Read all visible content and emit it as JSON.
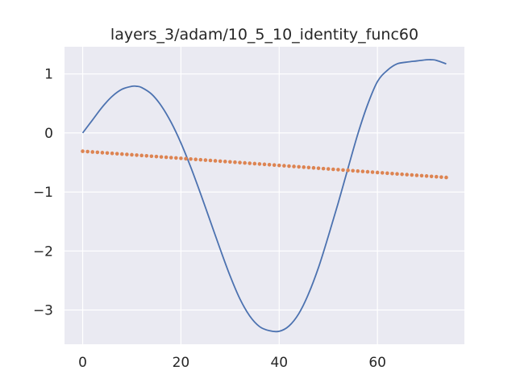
{
  "chart_data": {
    "type": "line",
    "title": "layers_3/adam/10_5_10_identity_func60",
    "xlabel": "",
    "ylabel": "",
    "xlim": [
      -3.7,
      77.7
    ],
    "ylim": [
      -3.58,
      1.46
    ],
    "grid": true,
    "xticks": [
      0,
      20,
      40,
      60
    ],
    "xtick_labels": [
      "0",
      "20",
      "40",
      "60"
    ],
    "yticks": [
      1,
      0,
      -1,
      -2,
      -3
    ],
    "ytick_labels": [
      "1",
      "0",
      "−1",
      "−2",
      "−3"
    ],
    "colors": {
      "background": "#eaeaf2",
      "grid": "#ffffff",
      "target_line": "#4c72b0",
      "prediction_dots": "#dd8452"
    },
    "series": [
      {
        "style": "line",
        "x": [
          0,
          2,
          4,
          6,
          8,
          10,
          11,
          12,
          14,
          16,
          18,
          20,
          22,
          24,
          26,
          28,
          30,
          32,
          34,
          36,
          38,
          40,
          42,
          44,
          46,
          48,
          50,
          52,
          54,
          56,
          58,
          60,
          62,
          64,
          66,
          68,
          70,
          71,
          72,
          74
        ],
        "y": [
          0.0,
          0.22,
          0.44,
          0.62,
          0.74,
          0.79,
          0.79,
          0.77,
          0.66,
          0.46,
          0.18,
          -0.17,
          -0.58,
          -1.03,
          -1.5,
          -1.97,
          -2.42,
          -2.81,
          -3.1,
          -3.28,
          -3.35,
          -3.36,
          -3.27,
          -3.06,
          -2.72,
          -2.28,
          -1.75,
          -1.19,
          -0.6,
          -0.02,
          0.48,
          0.87,
          1.06,
          1.17,
          1.2,
          1.22,
          1.24,
          1.24,
          1.23,
          1.17
        ]
      },
      {
        "style": "dots",
        "x": [
          0,
          1,
          2,
          3,
          4,
          5,
          6,
          7,
          8,
          9,
          10,
          11,
          12,
          13,
          14,
          15,
          16,
          17,
          18,
          19,
          20,
          21,
          22,
          23,
          24,
          25,
          26,
          27,
          28,
          29,
          30,
          31,
          32,
          33,
          34,
          35,
          36,
          37,
          38,
          39,
          40,
          41,
          42,
          43,
          44,
          45,
          46,
          47,
          48,
          49,
          50,
          51,
          52,
          53,
          54,
          55,
          56,
          57,
          58,
          59,
          60,
          61,
          62,
          63,
          64,
          65,
          66,
          67,
          68,
          69,
          70,
          71,
          72,
          73,
          74
        ],
        "y": [
          -0.31,
          -0.316,
          -0.322,
          -0.328,
          -0.334,
          -0.34,
          -0.346,
          -0.352,
          -0.358,
          -0.364,
          -0.37,
          -0.376,
          -0.382,
          -0.388,
          -0.394,
          -0.4,
          -0.406,
          -0.412,
          -0.418,
          -0.424,
          -0.43,
          -0.436,
          -0.442,
          -0.448,
          -0.454,
          -0.46,
          -0.466,
          -0.472,
          -0.478,
          -0.484,
          -0.49,
          -0.496,
          -0.502,
          -0.508,
          -0.514,
          -0.52,
          -0.526,
          -0.532,
          -0.538,
          -0.544,
          -0.55,
          -0.556,
          -0.562,
          -0.568,
          -0.574,
          -0.58,
          -0.586,
          -0.592,
          -0.598,
          -0.604,
          -0.61,
          -0.616,
          -0.622,
          -0.628,
          -0.634,
          -0.64,
          -0.646,
          -0.652,
          -0.658,
          -0.664,
          -0.67,
          -0.676,
          -0.682,
          -0.688,
          -0.694,
          -0.7,
          -0.706,
          -0.712,
          -0.718,
          -0.724,
          -0.73,
          -0.736,
          -0.742,
          -0.748,
          -0.754
        ]
      }
    ]
  }
}
